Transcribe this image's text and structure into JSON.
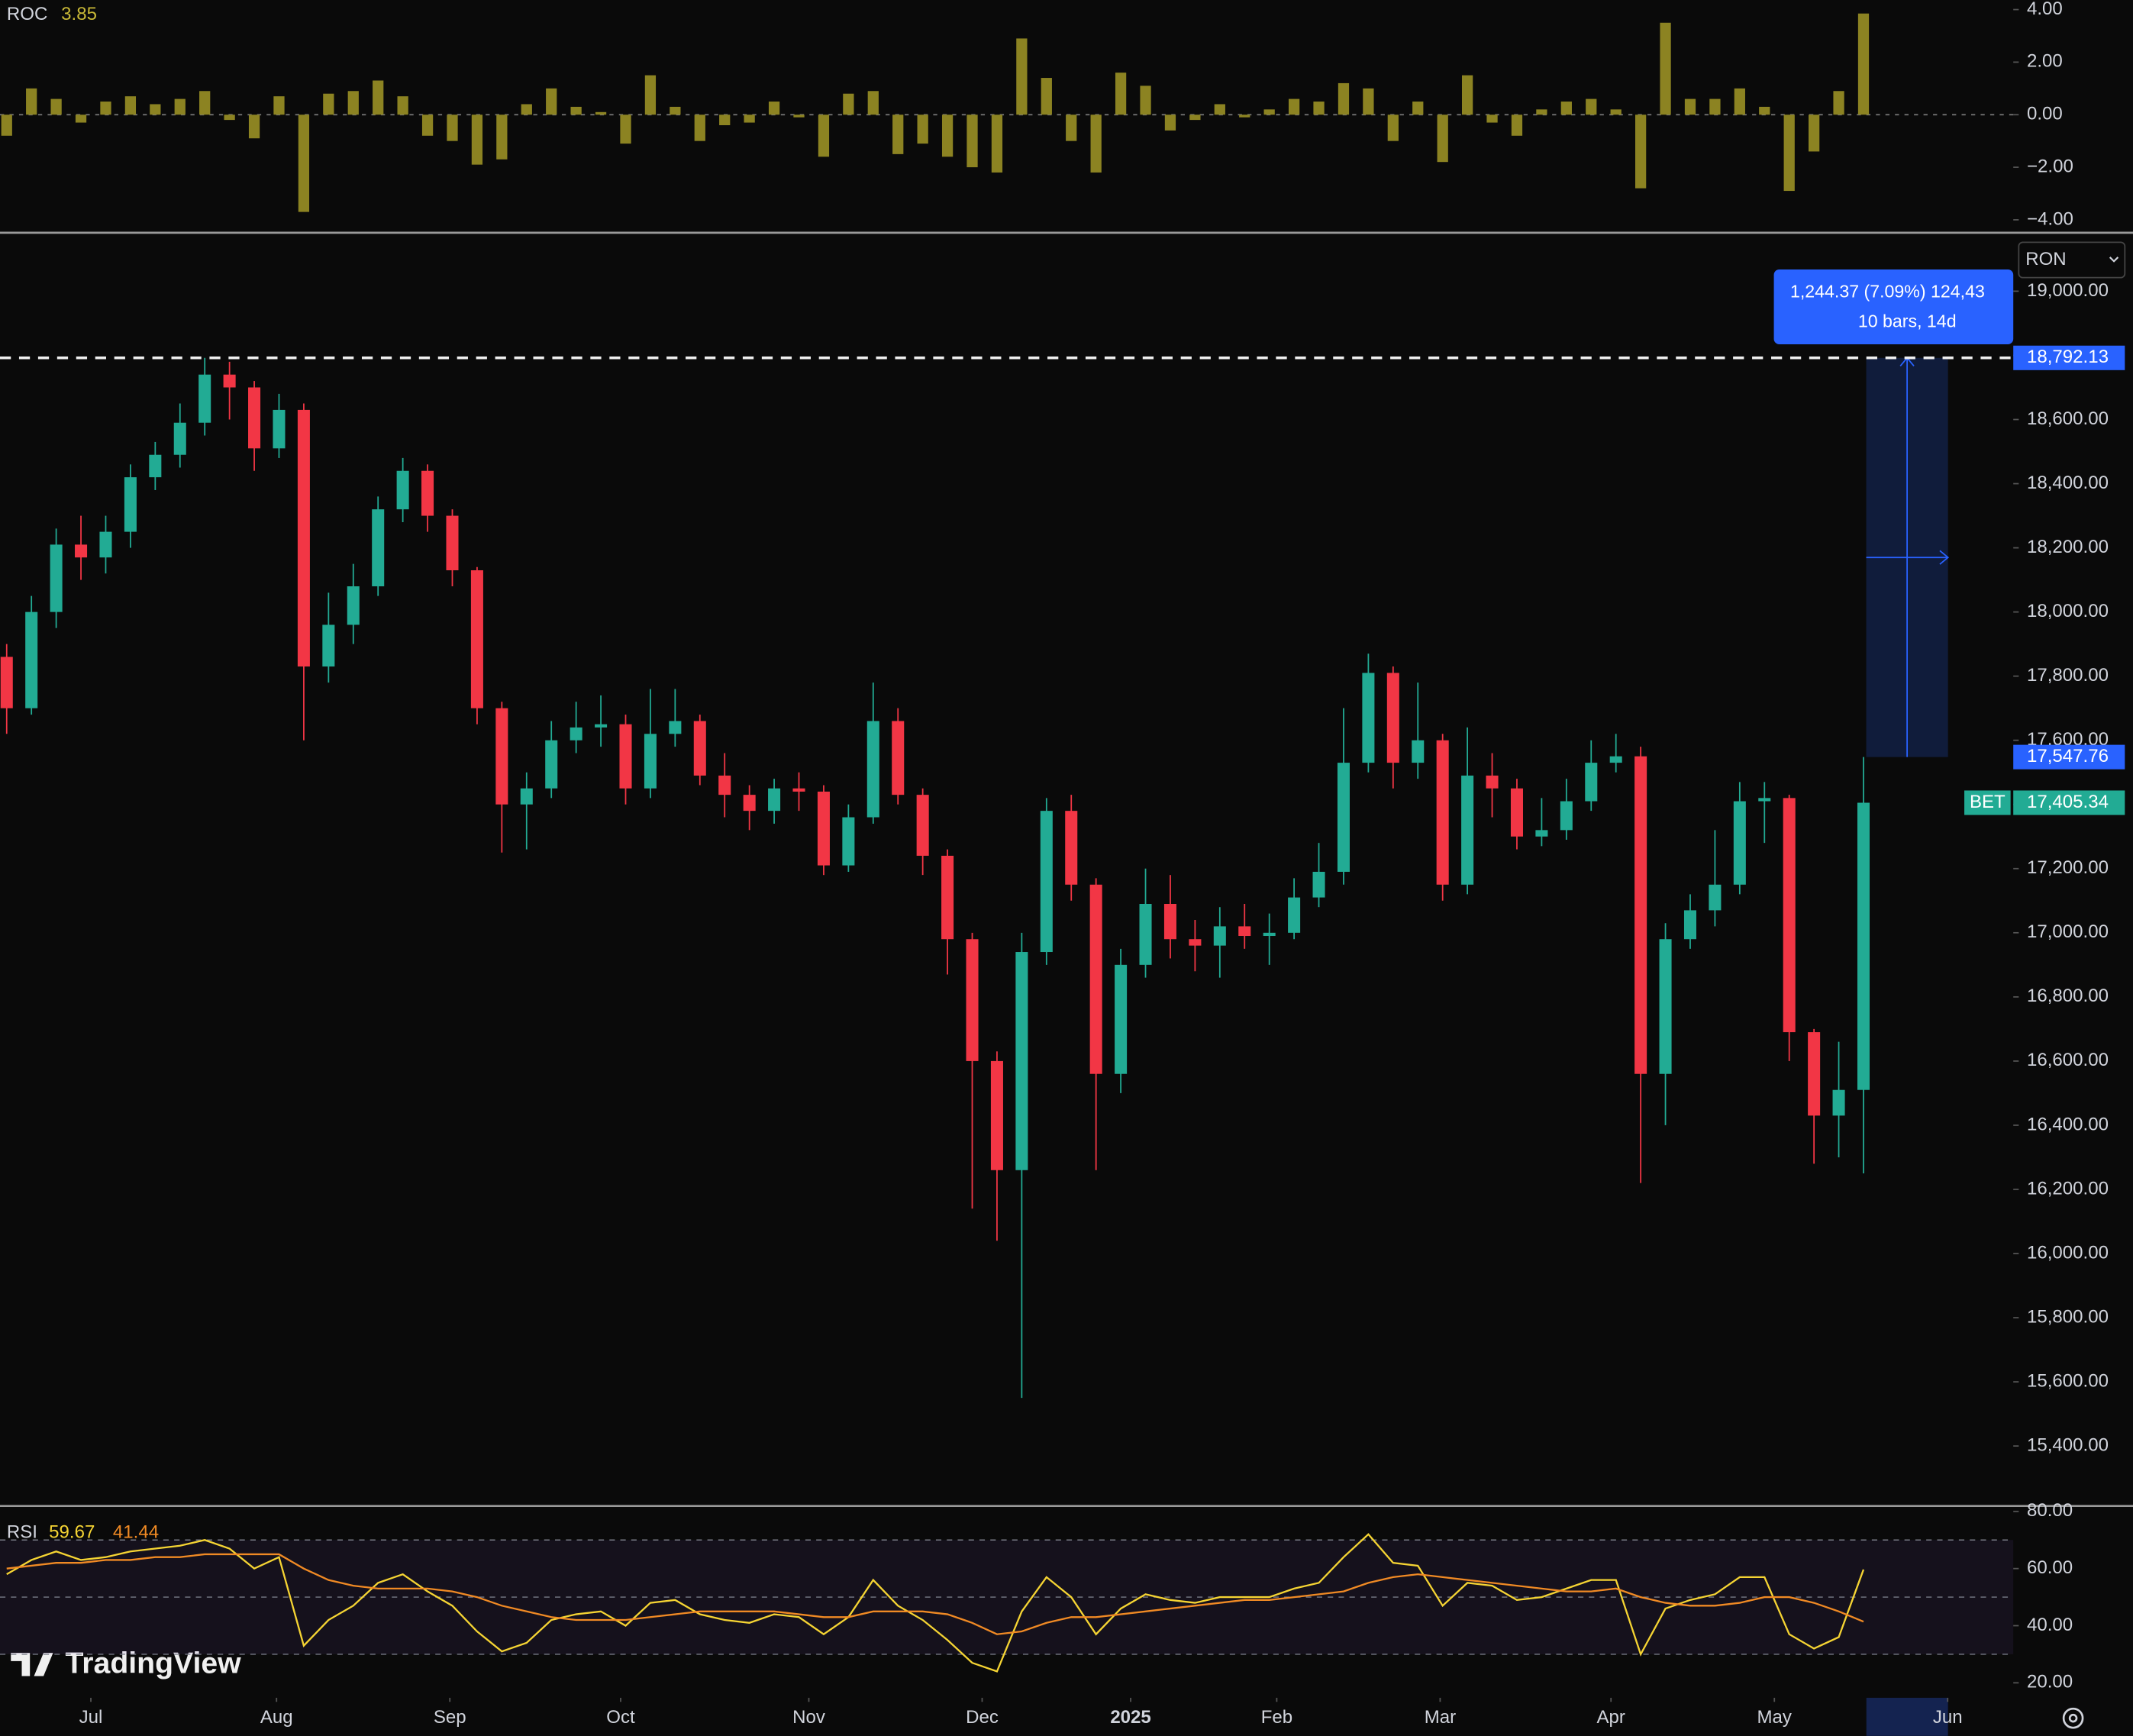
{
  "watermark": "TradingView",
  "chart_data": [
    {
      "type": "candlestick",
      "name": "BET",
      "currency": "RON",
      "open": [
        17860,
        17700,
        18000,
        18210,
        18170,
        18250,
        18420,
        18490,
        18590,
        18740,
        18700,
        18510,
        18630,
        17830,
        17960,
        18080,
        18320,
        18440,
        18300,
        18130,
        17700,
        17400,
        17450,
        17600,
        17640,
        17650,
        17450,
        17620,
        17660,
        17490,
        17430,
        17380,
        17450,
        17440,
        17210,
        17360,
        17660,
        17430,
        17240,
        16980,
        16600,
        16260,
        16940,
        17380,
        17150,
        16560,
        16900,
        17090,
        16980,
        16960,
        17020,
        16990,
        17000,
        17110,
        17190,
        17530,
        17810,
        17530,
        17600,
        17150,
        17490,
        17450,
        17300,
        17320,
        17410,
        17530,
        17550,
        16560,
        16980,
        17070,
        17150,
        17410,
        17420,
        16690,
        16430,
        16510
      ],
      "high": [
        17900,
        18050,
        18260,
        18300,
        18300,
        18460,
        18530,
        18650,
        18792.13,
        18780,
        18720,
        18680,
        18650,
        18060,
        18150,
        18360,
        18480,
        18460,
        18320,
        18140,
        17720,
        17500,
        17660,
        17720,
        17740,
        17680,
        17760,
        17760,
        17680,
        17560,
        17460,
        17480,
        17500,
        17460,
        17400,
        17780,
        17700,
        17450,
        17260,
        17000,
        16630,
        17000,
        17420,
        17430,
        17170,
        16950,
        17200,
        17180,
        17040,
        17080,
        17090,
        17060,
        17170,
        17280,
        17700,
        17870,
        17830,
        17780,
        17620,
        17640,
        17560,
        17480,
        17420,
        17480,
        17600,
        17620,
        17580,
        17030,
        17120,
        17320,
        17470,
        17470,
        17430,
        16700,
        16660,
        17547.76
      ],
      "low": [
        17620,
        17680,
        17950,
        18100,
        18120,
        18200,
        18380,
        18450,
        18550,
        18600,
        18440,
        18480,
        17600,
        17780,
        17900,
        18050,
        18280,
        18250,
        18080,
        17650,
        17250,
        17260,
        17420,
        17560,
        17580,
        17400,
        17420,
        17580,
        17460,
        17360,
        17320,
        17340,
        17380,
        17180,
        17190,
        17340,
        17400,
        17180,
        16870,
        16140,
        16040,
        15550,
        16900,
        17100,
        16260,
        16500,
        16860,
        16920,
        16880,
        16860,
        16950,
        16900,
        16980,
        17080,
        17150,
        17500,
        17450,
        17480,
        17100,
        17120,
        17360,
        17260,
        17270,
        17290,
        17380,
        17500,
        16220,
        16400,
        16950,
        17020,
        17120,
        17280,
        16600,
        16280,
        16300,
        16250
      ],
      "close": [
        17700,
        18000,
        18210,
        18170,
        18250,
        18420,
        18490,
        18590,
        18740,
        18700,
        18510,
        18630,
        17830,
        17960,
        18080,
        18320,
        18440,
        18300,
        18130,
        17700,
        17400,
        17450,
        17600,
        17640,
        17650,
        17450,
        17620,
        17660,
        17490,
        17430,
        17380,
        17450,
        17440,
        17210,
        17360,
        17660,
        17430,
        17240,
        16980,
        16600,
        16260,
        16940,
        17380,
        17150,
        16560,
        16900,
        17090,
        16980,
        16960,
        17020,
        16990,
        17000,
        17110,
        17190,
        17530,
        17810,
        17530,
        17600,
        17150,
        17490,
        17450,
        17300,
        17320,
        17410,
        17530,
        17550,
        16560,
        16980,
        17070,
        17150,
        17410,
        17420,
        16690,
        16430,
        16510,
        17405.34
      ],
      "up_color": "#22ab94",
      "down_color": "#f23645",
      "xlim": [
        -0.27,
        81.05
      ],
      "ylim": [
        15213,
        19178
      ],
      "grid": false,
      "yticks": [
        {
          "value": 19000,
          "label": "19,000.00"
        },
        {
          "value": 18800,
          "label": "18,800.00"
        },
        {
          "value": 18600,
          "label": "18,600.00"
        },
        {
          "value": 18400,
          "label": "18,400.00"
        },
        {
          "value": 18200,
          "label": "18,200.00"
        },
        {
          "value": 18000,
          "label": "18,000.00"
        },
        {
          "value": 17800,
          "label": "17,800.00"
        },
        {
          "value": 17600,
          "label": "17,600.00"
        },
        {
          "value": 17400,
          "label": "17,400.00"
        },
        {
          "value": 17200,
          "label": "17,200.00"
        },
        {
          "value": 17000,
          "label": "17,000.00"
        },
        {
          "value": 16800,
          "label": "16,800.00"
        },
        {
          "value": 16600,
          "label": "16,600.00"
        },
        {
          "value": 16400,
          "label": "16,400.00"
        },
        {
          "value": 16200,
          "label": "16,200.00"
        },
        {
          "value": 16000,
          "label": "16,000.00"
        },
        {
          "value": 15800,
          "label": "15,800.00"
        },
        {
          "value": 15600,
          "label": "15,600.00"
        },
        {
          "value": 15400,
          "label": "15,400.00"
        }
      ],
      "xticks": [
        {
          "value": 3.4,
          "label": "Jul"
        },
        {
          "value": 10.9,
          "label": "Aug"
        },
        {
          "value": 17.9,
          "label": "Sep"
        },
        {
          "value": 24.8,
          "label": "Oct"
        },
        {
          "value": 32.4,
          "label": "Nov"
        },
        {
          "value": 39.4,
          "label": "Dec"
        },
        {
          "value": 45.4,
          "label": "2025"
        },
        {
          "value": 51.3,
          "label": "Feb"
        },
        {
          "value": 57.9,
          "label": "Mar"
        },
        {
          "value": 64.8,
          "label": "Apr"
        },
        {
          "value": 71.4,
          "label": "May"
        },
        {
          "value": 78.4,
          "label": "Jun"
        }
      ],
      "hline": {
        "value": 18792.13,
        "label": "18,792.13",
        "style": "dashed"
      },
      "last": {
        "value": 17405.34,
        "label": "17,405.34",
        "color": "#22ab94"
      },
      "measure": {
        "from": 17547.76,
        "to": 18792.13,
        "from_label": "17,547.76",
        "text": "1,244.37 (7.09%) 124,43",
        "bars_text": "10 bars, 14d",
        "color": "#2962ff"
      }
    },
    {
      "type": "bar",
      "title": "ROC",
      "color": "#8c8322",
      "label_color": "#c9b937",
      "values": [
        -0.8,
        1.0,
        0.6,
        -0.3,
        0.5,
        0.7,
        0.4,
        0.6,
        0.9,
        -0.2,
        -0.9,
        0.7,
        -3.7,
        0.8,
        0.9,
        1.3,
        0.7,
        -0.8,
        -1.0,
        -1.9,
        -1.7,
        0.4,
        1.0,
        0.3,
        0.1,
        -1.1,
        1.5,
        0.3,
        -1.0,
        -0.4,
        -0.3,
        0.5,
        -0.1,
        -1.6,
        0.8,
        0.9,
        -1.5,
        -1.1,
        -1.6,
        -2.0,
        -2.2,
        2.9,
        1.4,
        -1.0,
        -2.2,
        1.6,
        1.1,
        -0.6,
        -0.2,
        0.4,
        -0.1,
        0.2,
        0.6,
        0.5,
        1.2,
        1.0,
        -1.0,
        0.5,
        -1.8,
        1.5,
        -0.3,
        -0.8,
        0.2,
        0.5,
        0.6,
        0.2,
        -2.8,
        3.5,
        0.6,
        0.6,
        1.0,
        0.3,
        -2.9,
        -1.4,
        0.9,
        3.85
      ],
      "ylim": [
        -4.44,
        4.36
      ],
      "yticks": [
        {
          "value": 4,
          "label": "4.00"
        },
        {
          "value": 2,
          "label": "2.00"
        },
        {
          "value": 0,
          "label": "0.00"
        },
        {
          "value": -2,
          "label": "−2.00"
        },
        {
          "value": -4,
          "label": "−4.00"
        }
      ]
    },
    {
      "type": "line",
      "title": "RSI",
      "series": [
        {
          "color": "#f5d433",
          "values": [
            58,
            63,
            66,
            63,
            64,
            66,
            67,
            68,
            70,
            67,
            60,
            64,
            33,
            42,
            47,
            55,
            58,
            52,
            47,
            38,
            31,
            34,
            42,
            44,
            45,
            40,
            48,
            49,
            44,
            42,
            41,
            44,
            43,
            37,
            43,
            56,
            47,
            42,
            35,
            27,
            24,
            45,
            57,
            50,
            37,
            46,
            51,
            49,
            48,
            50,
            50,
            50,
            53,
            55,
            64,
            72,
            62,
            61,
            47,
            55,
            54,
            49,
            50,
            53,
            56,
            56,
            30,
            46,
            49,
            51,
            57,
            57,
            37,
            32,
            36,
            59.67
          ]
        },
        {
          "color": "#f08a24",
          "values": [
            60,
            61,
            62,
            62,
            63,
            63,
            64,
            64,
            65,
            65,
            65,
            65,
            60,
            56,
            54,
            53,
            53,
            53,
            52,
            50,
            47,
            45,
            43,
            42,
            42,
            42,
            43,
            44,
            45,
            45,
            45,
            45,
            44,
            43,
            43,
            45,
            45,
            45,
            44,
            41,
            37,
            38,
            41,
            43,
            43,
            44,
            45,
            46,
            47,
            48,
            49,
            49,
            50,
            51,
            52,
            55,
            57,
            58,
            57,
            56,
            55,
            54,
            53,
            52,
            52,
            53,
            50,
            48,
            47,
            47,
            48,
            50,
            50,
            48,
            45,
            41.44
          ]
        }
      ],
      "ylim": [
        14.76,
        81.9
      ],
      "levels": [
        70,
        50,
        30
      ],
      "yticks": [
        {
          "value": 80,
          "label": "80.00"
        },
        {
          "value": 60,
          "label": "60.00"
        },
        {
          "value": 40,
          "label": "40.00"
        },
        {
          "value": 20,
          "label": "20.00"
        }
      ]
    }
  ]
}
